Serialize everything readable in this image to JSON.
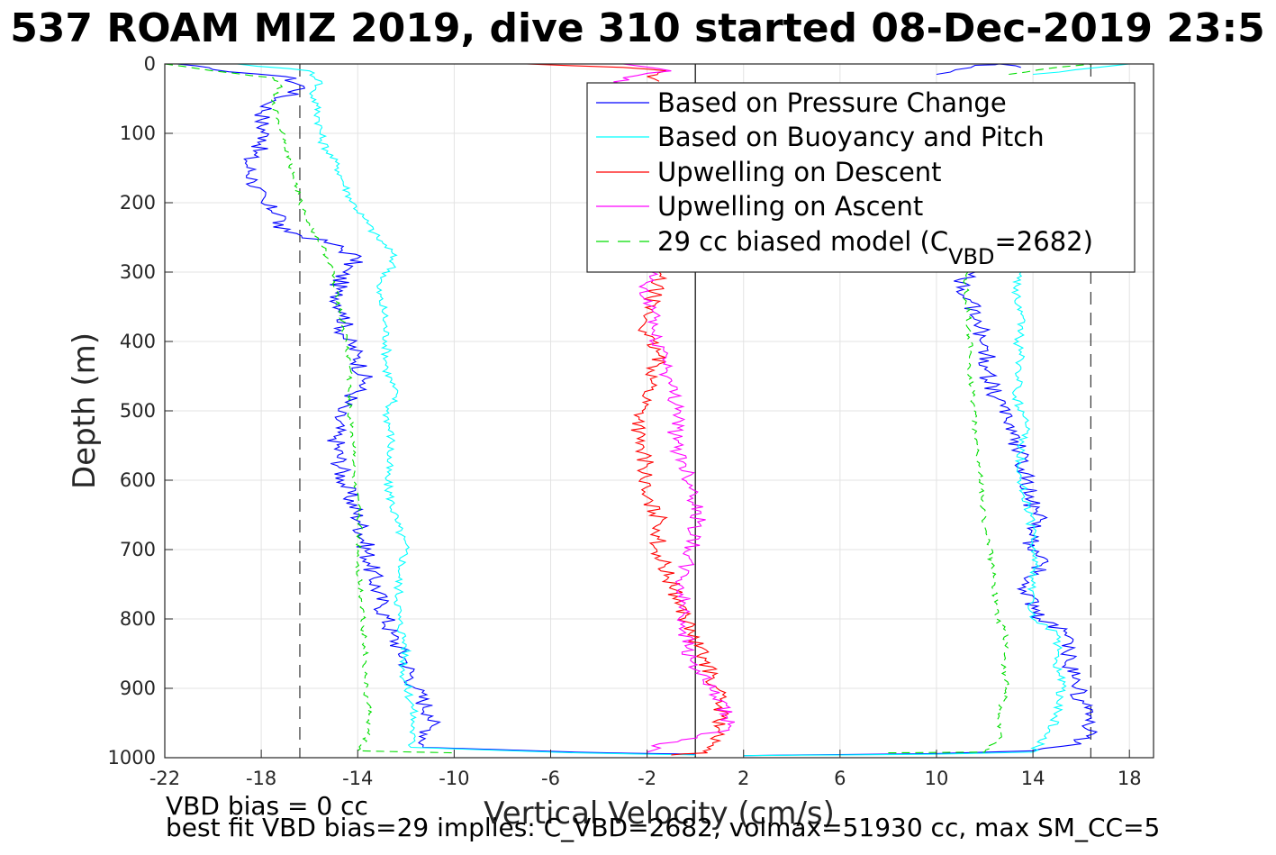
{
  "figure": {
    "title": "537 ROAM MIZ 2019, dive 310 started 08-Dec-2019 23:5",
    "footer_line1": "VBD bias = 0 cc",
    "footer_line2": "best fit VBD bias=29 implies: C_VBD=2682, volmax=51930 cc, max SM_CC=5"
  },
  "chart_data": {
    "type": "line",
    "xlabel": "Vertical Velocity (cm/s)",
    "ylabel": "Depth (m)",
    "xlim": [
      -22,
      19
    ],
    "ylim": [
      1000,
      0
    ],
    "xticks": [
      -22,
      -18,
      -14,
      -10,
      -6,
      -2,
      2,
      6,
      10,
      14,
      18
    ],
    "yticks": [
      0,
      100,
      200,
      300,
      400,
      500,
      600,
      700,
      800,
      900,
      1000
    ],
    "grid": true,
    "legend_position": "top-right",
    "reference_lines": {
      "dashed_x": [
        -16.4,
        16.4
      ],
      "solid_x": [
        0
      ]
    },
    "legend_model_prefix": "29 cc biased model (C",
    "legend_model_sub": "VBD",
    "legend_model_suffix": "=2682)",
    "series": [
      {
        "name": "Based on Pressure Change",
        "color": "#0000ff",
        "style": "solid",
        "descent": [
          [
            -21.5,
            0
          ],
          [
            -20,
            8
          ],
          [
            -17,
            18
          ],
          [
            -16.2,
            35
          ],
          [
            -17.6,
            55
          ],
          [
            -18,
            80
          ],
          [
            -17.8,
            110
          ],
          [
            -18.6,
            140
          ],
          [
            -18.3,
            170
          ],
          [
            -18.0,
            200
          ],
          [
            -17,
            220
          ],
          [
            -17.5,
            235
          ],
          [
            -15,
            260
          ],
          [
            -14,
            280
          ],
          [
            -14.6,
            300
          ],
          [
            -14.9,
            330
          ],
          [
            -14.5,
            360
          ],
          [
            -14.6,
            390
          ],
          [
            -14,
            420
          ],
          [
            -13.7,
            460
          ],
          [
            -14.8,
            500
          ],
          [
            -14.9,
            540
          ],
          [
            -14.6,
            600
          ],
          [
            -13.9,
            660
          ],
          [
            -13.5,
            720
          ],
          [
            -13,
            780
          ],
          [
            -12.6,
            820
          ],
          [
            -12.0,
            860
          ],
          [
            -11.6,
            900
          ],
          [
            -10.9,
            940
          ],
          [
            -11.0,
            960
          ],
          [
            -11.3,
            985
          ],
          [
            -5,
            992
          ],
          [
            0,
            995
          ]
        ],
        "ascent": [
          [
            2,
            997
          ],
          [
            10,
            994
          ],
          [
            14,
            990
          ],
          [
            16,
            980
          ],
          [
            16.3,
            960
          ],
          [
            16.4,
            940
          ],
          [
            15.8,
            900
          ],
          [
            15.4,
            860
          ],
          [
            15.4,
            820
          ],
          [
            14.3,
            800
          ],
          [
            13.7,
            760
          ],
          [
            14.4,
            720
          ],
          [
            13.8,
            700
          ],
          [
            14.3,
            660
          ],
          [
            13.9,
            630
          ],
          [
            13.8,
            600
          ],
          [
            13.5,
            560
          ],
          [
            13.1,
            520
          ],
          [
            12.4,
            480
          ],
          [
            12.0,
            440
          ],
          [
            12.1,
            410
          ],
          [
            11.8,
            380
          ],
          [
            11.4,
            340
          ],
          [
            11.0,
            310
          ],
          [
            11.6,
            300
          ]
        ],
        "ascent_top": [
          [
            10.0,
            15
          ],
          [
            11.6,
            2
          ],
          [
            12.6,
            0
          ],
          [
            13.5,
            5
          ]
        ]
      },
      {
        "name": "Based on Buoyancy and Pitch",
        "color": "#00ffff",
        "style": "solid",
        "descent": [
          [
            -19,
            0
          ],
          [
            -16,
            10
          ],
          [
            -15.5,
            25
          ],
          [
            -15.9,
            40
          ],
          [
            -15.7,
            60
          ],
          [
            -15.6,
            80
          ],
          [
            -15.5,
            110
          ],
          [
            -14.8,
            150
          ],
          [
            -14.6,
            170
          ],
          [
            -14.2,
            200
          ],
          [
            -13.8,
            220
          ],
          [
            -13.2,
            250
          ],
          [
            -12.6,
            270
          ],
          [
            -12.5,
            290
          ],
          [
            -13.2,
            320
          ],
          [
            -12.9,
            360
          ],
          [
            -12.8,
            400
          ],
          [
            -12.8,
            440
          ],
          [
            -12.4,
            480
          ],
          [
            -12.8,
            500
          ],
          [
            -12.6,
            540
          ],
          [
            -12.8,
            600
          ],
          [
            -12.4,
            660
          ],
          [
            -12.0,
            700
          ],
          [
            -12.3,
            740
          ],
          [
            -12.3,
            800
          ],
          [
            -12.0,
            840
          ],
          [
            -12.1,
            880
          ],
          [
            -11.7,
            930
          ],
          [
            -11.7,
            960
          ],
          [
            -11.8,
            985
          ],
          [
            -5,
            993
          ],
          [
            0,
            996
          ]
        ],
        "ascent": [
          [
            2,
            997
          ],
          [
            10,
            995
          ],
          [
            14,
            992
          ],
          [
            14.7,
            960
          ],
          [
            15.0,
            940
          ],
          [
            15.2,
            900
          ],
          [
            15.0,
            860
          ],
          [
            15.0,
            820
          ],
          [
            14.0,
            800
          ],
          [
            14.0,
            760
          ],
          [
            14.1,
            700
          ],
          [
            13.9,
            660
          ],
          [
            13.5,
            600
          ],
          [
            13.5,
            560
          ],
          [
            13.7,
            520
          ],
          [
            13.3,
            480
          ],
          [
            13.5,
            440
          ],
          [
            13.4,
            400
          ],
          [
            13.5,
            360
          ],
          [
            13.3,
            320
          ],
          [
            13.5,
            300
          ]
        ],
        "ascent_top": [
          [
            14.0,
            15
          ],
          [
            16.7,
            5
          ],
          [
            18,
            0
          ]
        ]
      },
      {
        "name": "Upwelling on Descent",
        "color": "#ff0000",
        "style": "solid",
        "descent": [
          [
            -7,
            0
          ],
          [
            -3,
            5
          ],
          [
            -1.2,
            10
          ],
          [
            -2,
            18
          ],
          [
            -1.5,
            25
          ]
        ],
        "main": [
          [
            -1.5,
            300
          ],
          [
            -1.7,
            330
          ],
          [
            -2.0,
            360
          ],
          [
            -2.1,
            390
          ],
          [
            -1.5,
            420
          ],
          [
            -1.8,
            460
          ],
          [
            -2.2,
            500
          ],
          [
            -2.4,
            540
          ],
          [
            -2.0,
            580
          ],
          [
            -2.2,
            620
          ],
          [
            -1.4,
            660
          ],
          [
            -1.6,
            700
          ],
          [
            -1.1,
            740
          ],
          [
            -0.6,
            780
          ],
          [
            -0.2,
            820
          ],
          [
            0.4,
            860
          ],
          [
            0.9,
            900
          ],
          [
            1.1,
            940
          ],
          [
            1.0,
            960
          ],
          [
            0.5,
            985
          ],
          [
            0.5,
            993
          ],
          [
            -1,
            996
          ]
        ]
      },
      {
        "name": "Upwelling on Ascent",
        "color": "#ff00ff",
        "style": "solid",
        "descent": [
          [
            -3,
            0
          ],
          [
            -1,
            10
          ],
          [
            -3,
            20
          ],
          [
            -3.2,
            40
          ],
          [
            -2.5,
            50
          ]
        ],
        "main": [
          [
            -1.8,
            300
          ],
          [
            -2.3,
            330
          ],
          [
            -1.6,
            360
          ],
          [
            -1.8,
            390
          ],
          [
            -1.2,
            420
          ],
          [
            -1.1,
            460
          ],
          [
            -0.6,
            500
          ],
          [
            -0.9,
            540
          ],
          [
            -0.4,
            580
          ],
          [
            0,
            620
          ],
          [
            0.1,
            660
          ],
          [
            -0.2,
            700
          ],
          [
            -0.6,
            740
          ],
          [
            -0.5,
            780
          ],
          [
            -0.4,
            820
          ],
          [
            -0.2,
            860
          ],
          [
            0.6,
            900
          ],
          [
            1.3,
            940
          ],
          [
            1.4,
            960
          ],
          [
            -1.5,
            980
          ],
          [
            -2,
            992
          ]
        ]
      },
      {
        "name": "29 cc biased model (C_VBD=2682)",
        "color": "#00dd00",
        "style": "dashed",
        "descent": [
          [
            -22,
            0
          ],
          [
            -20,
            10
          ],
          [
            -17.5,
            20
          ],
          [
            -17.2,
            30
          ],
          [
            -17.6,
            50
          ],
          [
            -17.3,
            80
          ],
          [
            -17.0,
            110
          ],
          [
            -16.8,
            140
          ],
          [
            -16.6,
            170
          ],
          [
            -16.4,
            200
          ],
          [
            -16.0,
            230
          ],
          [
            -15.5,
            260
          ],
          [
            -15.1,
            290
          ],
          [
            -15.0,
            320
          ],
          [
            -14.7,
            360
          ],
          [
            -14.5,
            400
          ],
          [
            -14.3,
            440
          ],
          [
            -14.4,
            480
          ],
          [
            -14.3,
            520
          ],
          [
            -14.1,
            560
          ],
          [
            -14.2,
            600
          ],
          [
            -13.9,
            660
          ],
          [
            -14.0,
            720
          ],
          [
            -13.8,
            780
          ],
          [
            -13.7,
            840
          ],
          [
            -13.7,
            900
          ],
          [
            -13.5,
            940
          ],
          [
            -13.6,
            970
          ],
          [
            -14,
            990
          ],
          [
            -10,
            993
          ]
        ],
        "ascent": [
          [
            8,
            993
          ],
          [
            12,
            992
          ],
          [
            12.7,
            970
          ],
          [
            12.6,
            940
          ],
          [
            12.9,
            900
          ],
          [
            12.8,
            860
          ],
          [
            12.9,
            820
          ],
          [
            12.5,
            800
          ],
          [
            12.4,
            760
          ],
          [
            12.3,
            720
          ],
          [
            12.1,
            680
          ],
          [
            11.9,
            640
          ],
          [
            11.8,
            600
          ],
          [
            11.7,
            560
          ],
          [
            11.6,
            520
          ],
          [
            11.5,
            480
          ],
          [
            11.3,
            440
          ],
          [
            11.4,
            400
          ],
          [
            11.3,
            360
          ],
          [
            11.2,
            320
          ],
          [
            11.3,
            300
          ]
        ],
        "ascent_top": [
          [
            13.0,
            15
          ],
          [
            15.0,
            5
          ],
          [
            16.5,
            0
          ]
        ]
      }
    ]
  }
}
